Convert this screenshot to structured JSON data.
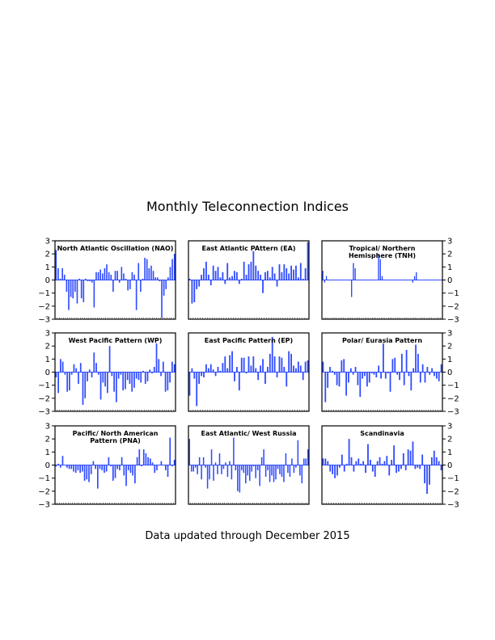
{
  "title": "Monthly Teleconnection Indices",
  "footer": "Data updated through December 2015",
  "bar_color": "#2f4bff",
  "chart_data": [
    {
      "type": "bar",
      "title": "North Atlantic Oscillation (NAO)",
      "ylim": [
        -3,
        3
      ],
      "yticks": [
        -3,
        -2,
        -1,
        0,
        1,
        2,
        3
      ],
      "values": [
        2.3,
        0.9,
        0.1,
        0.9,
        0.4,
        -0.9,
        -2.3,
        -1.3,
        -1.4,
        -0.9,
        -1.8,
        0.1,
        -1.4,
        -1.7,
        0.1,
        -0.1,
        -0.1,
        -0.2,
        -2.1,
        0.6,
        0.6,
        0.8,
        0.5,
        0.9,
        1.2,
        0.6,
        0.4,
        -0.9,
        0.7,
        0.7,
        -0.2,
        1.0,
        0.5,
        0.1,
        -0.8,
        -0.7,
        0.6,
        0.4,
        -2.3,
        1.3,
        -0.9,
        0.1,
        1.7,
        1.6,
        0.9,
        1.1,
        0.7,
        0.2,
        0.2,
        -0.1,
        -2.9,
        -1.2,
        -0.7,
        0.2,
        1.0,
        1.6,
        2.0
      ]
    },
    {
      "type": "bar",
      "title": "East Atlantic PAttern (EA)",
      "ylim": [
        -3,
        3
      ],
      "yticks": [
        -3,
        -2,
        -1,
        0,
        1,
        2,
        3
      ],
      "values": [
        0.1,
        -1.8,
        -1.7,
        -0.7,
        -0.5,
        0.4,
        0.9,
        1.4,
        0.4,
        -0.4,
        1.1,
        0.7,
        1.0,
        0.2,
        0.6,
        -0.3,
        1.3,
        0.2,
        0.3,
        0.7,
        0.6,
        -0.3,
        0.1,
        1.4,
        0.4,
        1.2,
        1.4,
        2.2,
        1.1,
        0.7,
        0.4,
        -1.0,
        0.6,
        0.7,
        0.2,
        1.0,
        0.5,
        -0.5,
        1.2,
        0.6,
        1.2,
        0.9,
        0.5,
        1.1,
        0.8,
        1.1,
        0.2,
        1.3,
        0.1,
        0.9,
        2.9
      ]
    },
    {
      "type": "bar",
      "title": "Tropical/ Northern Hemisphere (TNH)",
      "ylim": [
        -3,
        3
      ],
      "yticks": [
        -3,
        -2,
        -1,
        0,
        1,
        2,
        3
      ],
      "values": [
        0.7,
        -0.2,
        0.3,
        0,
        0,
        0,
        0,
        0,
        0,
        0,
        0,
        0,
        0,
        0,
        0,
        0,
        -1.3,
        1.3,
        0.9,
        0,
        0,
        0,
        0,
        0,
        0,
        0,
        0,
        0,
        0,
        0,
        0,
        2.0,
        1.6,
        0.3,
        0,
        0,
        0,
        0,
        0,
        0,
        0,
        0,
        0,
        0,
        0,
        0,
        0,
        0,
        0,
        0,
        -0.2,
        0.3,
        0.6,
        0,
        0,
        0,
        0,
        0,
        0,
        0,
        0,
        0,
        0,
        0,
        0,
        0,
        0
      ]
    },
    {
      "type": "bar",
      "title": "West Pacific Pattern (WP)",
      "ylim": [
        -3,
        3
      ],
      "yticks": [
        -3,
        -2,
        -1,
        0,
        1,
        2,
        3
      ],
      "values": [
        -0.4,
        -1.6,
        1.0,
        0.8,
        -0.2,
        -1.5,
        -1.4,
        -0.2,
        0.6,
        0.3,
        -0.9,
        0.7,
        -2.5,
        -2.0,
        -0.7,
        0.2,
        -0.4,
        1.5,
        0.7,
        -0.2,
        -2.1,
        -0.8,
        -1.1,
        -1.6,
        2.0,
        -0.3,
        -1.5,
        -2.3,
        -0.5,
        -0.2,
        -1.4,
        -1.3,
        -0.6,
        -0.9,
        -1.5,
        -1.2,
        -0.5,
        -0.6,
        -0.8,
        0.1,
        -0.9,
        -0.7,
        0.2,
        -0.1,
        0.4,
        2.2,
        1.0,
        -0.3,
        0.8,
        -1.5,
        -1.4,
        -0.8,
        0.8,
        0.6
      ]
    },
    {
      "type": "bar",
      "title": "East Pacific Pattern (EP)",
      "ylim": [
        -3,
        3
      ],
      "yticks": [
        -3,
        -2,
        -1,
        0,
        1,
        2,
        3
      ],
      "values": [
        -1.8,
        0.3,
        -0.5,
        -2.6,
        -0.9,
        -0.3,
        -0.4,
        0.6,
        0.3,
        0.6,
        0.2,
        -0.3,
        0.4,
        0.1,
        0.7,
        1.2,
        0.3,
        1.3,
        1.6,
        -0.7,
        0.4,
        -1.4,
        1.1,
        1.1,
        -0.1,
        1.2,
        0.5,
        1.2,
        0.3,
        -0.6,
        0.5,
        1.0,
        -0.9,
        0.4,
        1.4,
        2.7,
        1.2,
        -0.4,
        1.2,
        1.1,
        0.4,
        -1.1,
        1.6,
        1.4,
        0.5,
        0.3,
        0.8,
        0.5,
        -0.6,
        0.8,
        0.9
      ]
    },
    {
      "type": "bar",
      "title": "Polar/ Eurasia Pattern",
      "ylim": [
        -3,
        3
      ],
      "yticks": [
        -3,
        -2,
        -1,
        0,
        1,
        2,
        3
      ],
      "values": [
        0.8,
        -2.3,
        -1.2,
        0.4,
        0.1,
        -0.2,
        -1.0,
        -1.1,
        0.9,
        1.0,
        -1.8,
        -0.8,
        0.3,
        -0.2,
        0.4,
        -1.0,
        -1.9,
        -0.5,
        -0.3,
        -1.1,
        -0.8,
        -0.1,
        -0.2,
        -0.4,
        0.5,
        -0.5,
        2.2,
        -0.5,
        -0.1,
        -1.5,
        1.0,
        1.1,
        -0.2,
        -0.6,
        1.4,
        -1.0,
        1.7,
        -0.3,
        -1.4,
        0.3,
        2.1,
        1.4,
        -0.8,
        0.6,
        -0.8,
        0.4,
        -0.2,
        0.3,
        -0.3,
        -0.5,
        -0.7,
        0.6
      ]
    },
    {
      "type": "bar",
      "title": "Pacific/ North American Pattern (PNA)",
      "ylim": [
        -3,
        3
      ],
      "yticks": [
        -3,
        -2,
        -1,
        0,
        1,
        2,
        3
      ],
      "values": [
        -0.1,
        0.1,
        -0.2,
        0.7,
        0,
        -0.2,
        -0.3,
        -0.3,
        -0.5,
        -0.6,
        -0.4,
        -0.6,
        -0.5,
        -1.2,
        -1.1,
        -1.3,
        -0.7,
        0.3,
        -0.3,
        -1.8,
        -0.3,
        -0.4,
        -0.6,
        -0.5,
        0.6,
        -0.1,
        -1.2,
        -1.0,
        -0.3,
        -0.4,
        0.6,
        -0.8,
        -1.6,
        -0.4,
        -0.6,
        -0.8,
        -1.4,
        0.6,
        1.2,
        -0.1,
        1.2,
        0.9,
        0.6,
        0.5,
        0.2,
        -0.6,
        -0.4,
        0,
        0.3,
        0,
        -0.4,
        -0.9,
        2.1,
        -0.1,
        0.4
      ]
    },
    {
      "type": "bar",
      "title": "East Atlantic/ West Russia",
      "ylim": [
        -3,
        3
      ],
      "yticks": [
        -3,
        -2,
        -1,
        0,
        1,
        2,
        3
      ],
      "values": [
        2.0,
        -0.5,
        -0.5,
        -0.2,
        -0.7,
        0.6,
        -1.1,
        0.6,
        -0.2,
        -1.8,
        -1.1,
        1.2,
        -1.2,
        0.2,
        -0.7,
        0.9,
        -0.7,
        -0.3,
        0.2,
        -0.9,
        0.3,
        -1.1,
        2.1,
        -0.4,
        -2.0,
        -2.1,
        -0.4,
        -0.6,
        -1.4,
        -0.8,
        -1.2,
        -0.5,
        -0.1,
        -1.0,
        -0.4,
        -1.6,
        0.6,
        1.2,
        -0.9,
        -0.4,
        -1.3,
        -0.8,
        -1.3,
        -1.1,
        -0.3,
        -0.7,
        -0.9,
        -1.3,
        0.9,
        -0.6,
        -0.9,
        0.5,
        -0.6,
        -0.2,
        1.9,
        -0.8,
        -1.4,
        0.5,
        0.5,
        1.2
      ]
    },
    {
      "type": "bar",
      "title": "Scandinavia",
      "ylim": [
        -3,
        3
      ],
      "yticks": [
        -3,
        -2,
        -1,
        0,
        1,
        2,
        3
      ],
      "values": [
        0.5,
        0.5,
        0.3,
        -0.5,
        -0.7,
        -1.0,
        -0.8,
        -0.2,
        0.8,
        -0.5,
        0.1,
        2.0,
        0.6,
        -0.5,
        0.3,
        0.5,
        0.1,
        0.3,
        -0.6,
        1.6,
        0.4,
        -0.5,
        -0.9,
        0.3,
        0.6,
        0.1,
        0.3,
        0.7,
        -0.8,
        0.4,
        1.5,
        -0.6,
        -0.5,
        -0.3,
        0.9,
        -0.4,
        1.2,
        1.1,
        1.8,
        -0.3,
        -0.2,
        -0.3,
        0.8,
        -1.4,
        -2.2,
        -1.5,
        0.6,
        1.1,
        0.6,
        0.3,
        -0.4
      ]
    }
  ]
}
